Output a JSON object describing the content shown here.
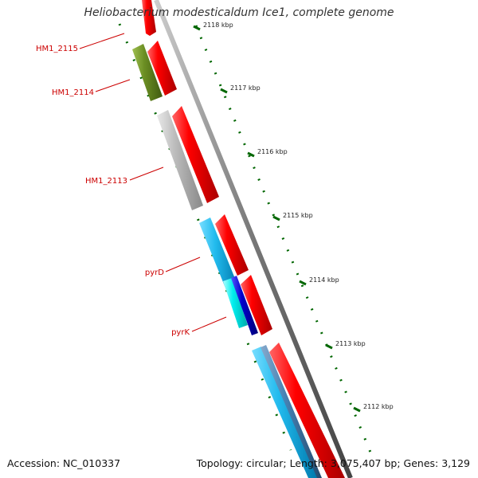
{
  "title": "Heliobacterium modesticaldum Ice1, complete genome",
  "footer": {
    "accession": "Accession: NC_010337",
    "summary": "Topology: circular; Length: 3,075,407 bp; Genes: 3,129"
  },
  "ticks": [
    {
      "label": "2118 kbp"
    },
    {
      "label": "2117 kbp"
    },
    {
      "label": "2116 kbp"
    },
    {
      "label": "2115 kbp"
    },
    {
      "label": "2114 kbp"
    },
    {
      "label": "2113 kbp"
    },
    {
      "label": "2112 kbp"
    }
  ],
  "gene_labels": [
    {
      "name": "HM1_2115"
    },
    {
      "name": "HM1_2114"
    },
    {
      "name": "HM1_2113"
    },
    {
      "name": "pyrD"
    },
    {
      "name": "pyrK"
    }
  ],
  "colors": {
    "cds": "#ff0000",
    "label": "#cc0000",
    "tick": "#006600",
    "backbone": "#888888",
    "olive": "#6b8e23",
    "gray": "#bbbbbb",
    "cyan": "#22bbee",
    "aqua": "#00eeee",
    "blue": "#0000cc",
    "steel": "#4682b4"
  }
}
